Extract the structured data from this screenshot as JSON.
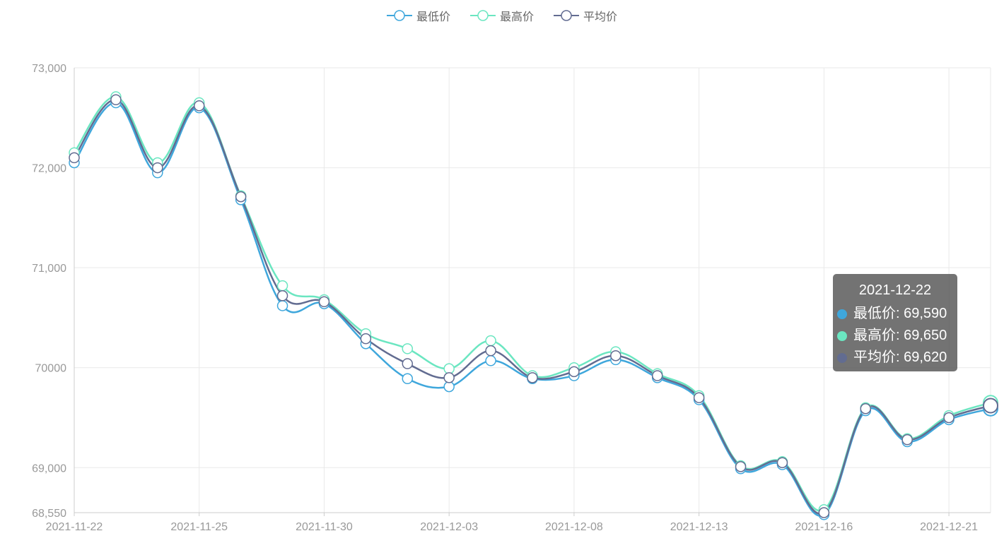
{
  "chart_data": {
    "type": "line",
    "smooth": true,
    "categories": [
      "2021-11-22",
      "2021-11-23",
      "2021-11-24",
      "2021-11-25",
      "2021-11-26",
      "2021-11-29",
      "2021-11-30",
      "2021-12-01",
      "2021-12-02",
      "2021-12-03",
      "2021-12-06",
      "2021-12-07",
      "2021-12-08",
      "2021-12-09",
      "2021-12-10",
      "2021-12-13",
      "2021-12-14",
      "2021-12-15",
      "2021-12-16",
      "2021-12-17",
      "2021-12-20",
      "2021-12-21",
      "2021-12-22"
    ],
    "x_tick_labels": [
      "2021-11-22",
      "2021-11-25",
      "2021-11-30",
      "2021-12-03",
      "2021-12-08",
      "2021-12-13",
      "2021-12-16",
      "2021-12-21"
    ],
    "y_ticks": [
      68550,
      69000,
      70000,
      71000,
      72000,
      73000
    ],
    "y_tick_labels": [
      "68,550",
      "69,000",
      "70000",
      "71,000",
      "72,000",
      "73,000"
    ],
    "ylim": [
      68550,
      73000
    ],
    "grid": true,
    "legend_position": "top-center",
    "series": [
      {
        "name": "最低价",
        "color": "#3fa7dc",
        "values": [
          72050,
          72650,
          71950,
          72600,
          71680,
          70620,
          70640,
          70240,
          69890,
          69810,
          70070,
          69890,
          69920,
          70080,
          69900,
          69680,
          68990,
          69030,
          68530,
          69570,
          69260,
          69480,
          69590
        ]
      },
      {
        "name": "最高价",
        "color": "#6be6c1",
        "values": [
          72150,
          72710,
          72050,
          72650,
          71720,
          70820,
          70680,
          70340,
          70190,
          69990,
          70270,
          69920,
          70000,
          70160,
          69940,
          69720,
          69020,
          69060,
          68580,
          69600,
          69290,
          69520,
          69650
        ]
      },
      {
        "name": "平均价",
        "color": "#626c91",
        "values": [
          72100,
          72680,
          72000,
          72620,
          71710,
          70720,
          70660,
          70290,
          70040,
          69900,
          70170,
          69900,
          69960,
          70120,
          69920,
          69700,
          69010,
          69050,
          68550,
          69590,
          69280,
          69500,
          69620
        ]
      }
    ],
    "tooltip": {
      "title": "2021-12-22",
      "rows": [
        {
          "label": "最低价: 69,590",
          "color": "#3fa7dc"
        },
        {
          "label": "最高价: 69,650",
          "color": "#6be6c1"
        },
        {
          "label": "平均价: 69,620",
          "color": "#626c91"
        }
      ]
    }
  }
}
